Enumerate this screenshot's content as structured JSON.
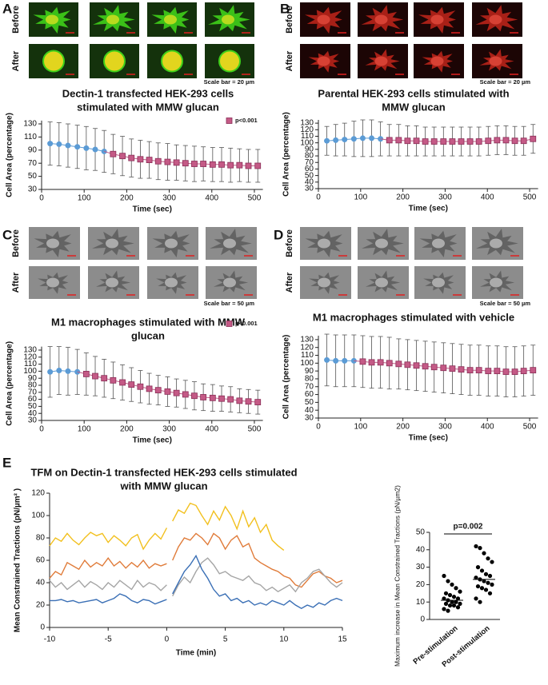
{
  "chart_data": [
    {
      "type": "line",
      "panel": "A",
      "row_labels": [
        "Before",
        "After"
      ],
      "scale_note": "Scale bar = 20 µm",
      "title": [
        "Dectin-1 transfected HEK-293 cells",
        "stimulated with MMW glucan"
      ],
      "x_label": "Time (sec)",
      "y_label": "Cell Area (percentage)",
      "xlim": [
        0,
        520
      ],
      "xticks": [
        0,
        100,
        200,
        300,
        400,
        500
      ],
      "ylim": [
        30,
        135
      ],
      "yticks": [
        30,
        50,
        70,
        90,
        110,
        130
      ],
      "series": [
        {
          "color": "#5b9bd5",
          "marker": "circle",
          "x": [
            20,
            41,
            62,
            84,
            105,
            126,
            147
          ],
          "values": [
            100,
            99,
            97,
            95,
            93,
            91,
            88
          ],
          "errors": [
            33,
            33,
            33,
            33,
            33,
            32,
            32
          ]
        },
        {
          "name": "p<0.001",
          "color": "#c45a86",
          "marker": "square",
          "x": [
            168,
            190,
            211,
            232,
            253,
            274,
            296,
            317,
            338,
            359,
            380,
            402,
            423,
            444,
            465,
            486,
            508
          ],
          "values": [
            84,
            81,
            78,
            76,
            75,
            73,
            72,
            71,
            70,
            69,
            69,
            68,
            68,
            67,
            67,
            66,
            66
          ],
          "errors": [
            30,
            30,
            29,
            29,
            28,
            28,
            28,
            27,
            27,
            27,
            26,
            26,
            26,
            26,
            25,
            25,
            25
          ]
        }
      ]
    },
    {
      "type": "line",
      "panel": "B",
      "row_labels": [
        "Before",
        "After"
      ],
      "scale_note": "Scale bar = 20 µm",
      "title": [
        "Parental HEK-293 cells stimulated with",
        "MMW glucan"
      ],
      "x_label": "Time (sec)",
      "y_label": "Cell Area (percentage)",
      "xlim": [
        0,
        520
      ],
      "xticks": [
        0,
        100,
        200,
        300,
        400,
        500
      ],
      "ylim": [
        30,
        135
      ],
      "yticks": [
        30,
        40,
        50,
        60,
        70,
        80,
        90,
        100,
        110,
        120,
        130
      ],
      "series": [
        {
          "color": "#5b9bd5",
          "marker": "circle",
          "x": [
            20,
            41,
            62,
            84,
            105,
            126,
            147
          ],
          "values": [
            103,
            104,
            105,
            106,
            107,
            107,
            106
          ],
          "errors": [
            22,
            24,
            25,
            27,
            28,
            28,
            26
          ]
        },
        {
          "color": "#c45a86",
          "marker": "square",
          "x": [
            168,
            190,
            211,
            232,
            253,
            274,
            296,
            317,
            338,
            359,
            380,
            402,
            423,
            444,
            465,
            486,
            508
          ],
          "values": [
            104,
            104,
            103,
            103,
            102,
            102,
            102,
            102,
            102,
            102,
            102,
            103,
            104,
            104,
            103,
            103,
            106
          ],
          "errors": [
            24,
            24,
            23,
            23,
            22,
            22,
            22,
            22,
            22,
            22,
            22,
            22,
            22,
            22,
            22,
            22,
            22
          ]
        }
      ]
    },
    {
      "type": "line",
      "panel": "C",
      "row_labels": [
        "Before",
        "After"
      ],
      "scale_note": "Scale bar = 50 µm",
      "title": [
        "M1 macrophages stimulated with MMW",
        "glucan"
      ],
      "x_label": "Time (sec)",
      "y_label": "Cell Area (percentage)",
      "xlim": [
        0,
        520
      ],
      "xticks": [
        0,
        100,
        200,
        300,
        400,
        500
      ],
      "ylim": [
        30,
        135
      ],
      "yticks": [
        30,
        40,
        50,
        60,
        70,
        80,
        90,
        100,
        110,
        120,
        130
      ],
      "series": [
        {
          "color": "#5b9bd5",
          "marker": "circle",
          "x": [
            20,
            41,
            62,
            84
          ],
          "values": [
            99,
            101,
            100,
            99
          ],
          "errors": [
            36,
            34,
            34,
            32
          ]
        },
        {
          "name": "p<0.001",
          "color": "#c45a86",
          "marker": "square",
          "x": [
            105,
            126,
            147,
            168,
            190,
            211,
            232,
            253,
            274,
            296,
            317,
            338,
            359,
            380,
            402,
            423,
            444,
            465,
            486,
            508
          ],
          "values": [
            96,
            93,
            90,
            87,
            84,
            81,
            78,
            75,
            73,
            71,
            69,
            67,
            65,
            63,
            62,
            61,
            60,
            58,
            57,
            56
          ],
          "errors": [
            30,
            28,
            27,
            26,
            25,
            24,
            23,
            22,
            21,
            21,
            20,
            20,
            20,
            19,
            19,
            18,
            18,
            17,
            17,
            17
          ]
        }
      ]
    },
    {
      "type": "line",
      "panel": "D",
      "row_labels": [
        "Before",
        "After"
      ],
      "scale_note": "Scale bar = 50 µm",
      "title": [
        "M1 macrophages stimulated with vehicle"
      ],
      "x_label": "Time (sec)",
      "y_label": "Cell Area (percentage)",
      "xlim": [
        0,
        520
      ],
      "xticks": [
        0,
        100,
        200,
        300,
        400,
        500
      ],
      "ylim": [
        30,
        135
      ],
      "yticks": [
        30,
        40,
        50,
        60,
        70,
        80,
        90,
        100,
        110,
        120,
        130
      ],
      "series": [
        {
          "color": "#5b9bd5",
          "marker": "circle",
          "x": [
            20,
            41,
            62,
            84
          ],
          "values": [
            104,
            103,
            103,
            103
          ],
          "errors": [
            33,
            33,
            33,
            33
          ]
        },
        {
          "color": "#c45a86",
          "marker": "square",
          "x": [
            105,
            126,
            147,
            168,
            190,
            211,
            232,
            253,
            274,
            296,
            317,
            338,
            359,
            380,
            402,
            423,
            444,
            465,
            486,
            508
          ],
          "values": [
            102,
            101,
            101,
            100,
            99,
            98,
            97,
            96,
            95,
            94,
            93,
            92,
            91,
            91,
            90,
            90,
            89,
            89,
            90,
            91
          ],
          "errors": [
            33,
            33,
            33,
            33,
            32,
            32,
            32,
            32,
            32,
            32,
            32,
            32,
            32,
            32,
            32,
            32,
            32,
            32,
            32,
            32
          ]
        }
      ]
    },
    {
      "type": "line",
      "panel": "E",
      "title": [
        "TFM on Dectin-1 transfected HEK-293 cells stimulated",
        "with MMW glucan"
      ],
      "x_label": "Time (min)",
      "y_label": "Mean Constrained Tractions (pN/µm² )",
      "xlim": [
        -10,
        15
      ],
      "xticks": [
        -10,
        -5,
        0,
        5,
        10,
        15
      ],
      "ylim": [
        0,
        120
      ],
      "yticks": [
        0,
        20,
        40,
        60,
        80,
        100,
        120
      ],
      "x": [
        -10,
        -9.5,
        -9,
        -8.5,
        -8,
        -7.5,
        -7,
        -6.5,
        -6,
        -5.5,
        -5,
        -4.5,
        -4,
        -3.5,
        -3,
        -2.5,
        -2,
        -1.5,
        -1,
        -0.5,
        0,
        0.25,
        0.5,
        1,
        1.5,
        2,
        2.5,
        3,
        3.5,
        4,
        4.5,
        5,
        5.5,
        6,
        6.5,
        7,
        7.5,
        8,
        8.5,
        9,
        9.5,
        10,
        10.5,
        11,
        11.5,
        12,
        12.5,
        13,
        13.5,
        14,
        14.5,
        15
      ],
      "series": [
        {
          "color": "#f2c01e",
          "values": [
            73,
            80,
            77,
            84,
            78,
            74,
            80,
            85,
            82,
            84,
            76,
            82,
            78,
            73,
            80,
            83,
            70,
            78,
            84,
            79,
            89,
            null,
            95,
            105,
            102,
            111,
            109,
            100,
            92,
            104,
            96,
            108,
            100,
            88,
            104,
            90,
            98,
            85,
            92,
            78,
            73,
            69,
            null,
            null,
            null,
            null,
            null,
            null,
            null,
            null,
            null,
            null
          ]
        },
        {
          "color": "#e07b39",
          "values": [
            44,
            50,
            47,
            58,
            55,
            52,
            60,
            54,
            58,
            55,
            62,
            55,
            59,
            53,
            58,
            54,
            60,
            53,
            57,
            55,
            57,
            null,
            60,
            72,
            80,
            78,
            84,
            80,
            74,
            84,
            80,
            70,
            78,
            82,
            72,
            75,
            62,
            58,
            55,
            52,
            50,
            46,
            44,
            38,
            36,
            42,
            48,
            50,
            46,
            44,
            40,
            42
          ]
        },
        {
          "color": "#a5a5a5",
          "values": [
            42,
            36,
            40,
            34,
            38,
            42,
            36,
            41,
            38,
            34,
            40,
            36,
            42,
            38,
            34,
            42,
            36,
            40,
            38,
            33,
            38,
            null,
            28,
            38,
            45,
            40,
            50,
            58,
            62,
            56,
            48,
            50,
            46,
            44,
            42,
            46,
            40,
            38,
            33,
            36,
            32,
            35,
            38,
            32,
            40,
            44,
            50,
            52,
            46,
            40,
            36,
            40
          ]
        },
        {
          "color": "#3a6fb5",
          "values": [
            24,
            24,
            25,
            23,
            24,
            22,
            23,
            24,
            25,
            22,
            24,
            26,
            30,
            28,
            24,
            22,
            25,
            24,
            21,
            23,
            25,
            null,
            30,
            40,
            50,
            56,
            64,
            52,
            44,
            34,
            28,
            30,
            24,
            26,
            22,
            24,
            20,
            22,
            20,
            24,
            22,
            20,
            24,
            20,
            17,
            20,
            18,
            22,
            20,
            24,
            26,
            24
          ]
        }
      ]
    },
    {
      "type": "strip",
      "y_label": "Maximum increase in Mean Constrained Tractions (pN/µm2)",
      "categories": [
        "Pre-stimulation",
        "Post-stimulation"
      ],
      "annotation": "p=0.002",
      "ylim": [
        0,
        50
      ],
      "yticks": [
        0,
        10,
        20,
        30,
        40,
        50
      ],
      "color": "#000000",
      "values": [
        [
          25,
          22,
          20,
          18,
          16,
          15,
          14,
          13,
          12,
          12,
          11,
          10,
          10,
          9,
          9,
          8,
          8,
          7,
          6,
          5
        ],
        [
          42,
          41,
          38,
          35,
          33,
          30,
          28,
          26,
          25,
          24,
          23,
          22,
          21,
          20,
          19,
          18,
          17,
          15,
          12,
          10
        ]
      ],
      "medians": [
        11,
        23
      ]
    }
  ]
}
